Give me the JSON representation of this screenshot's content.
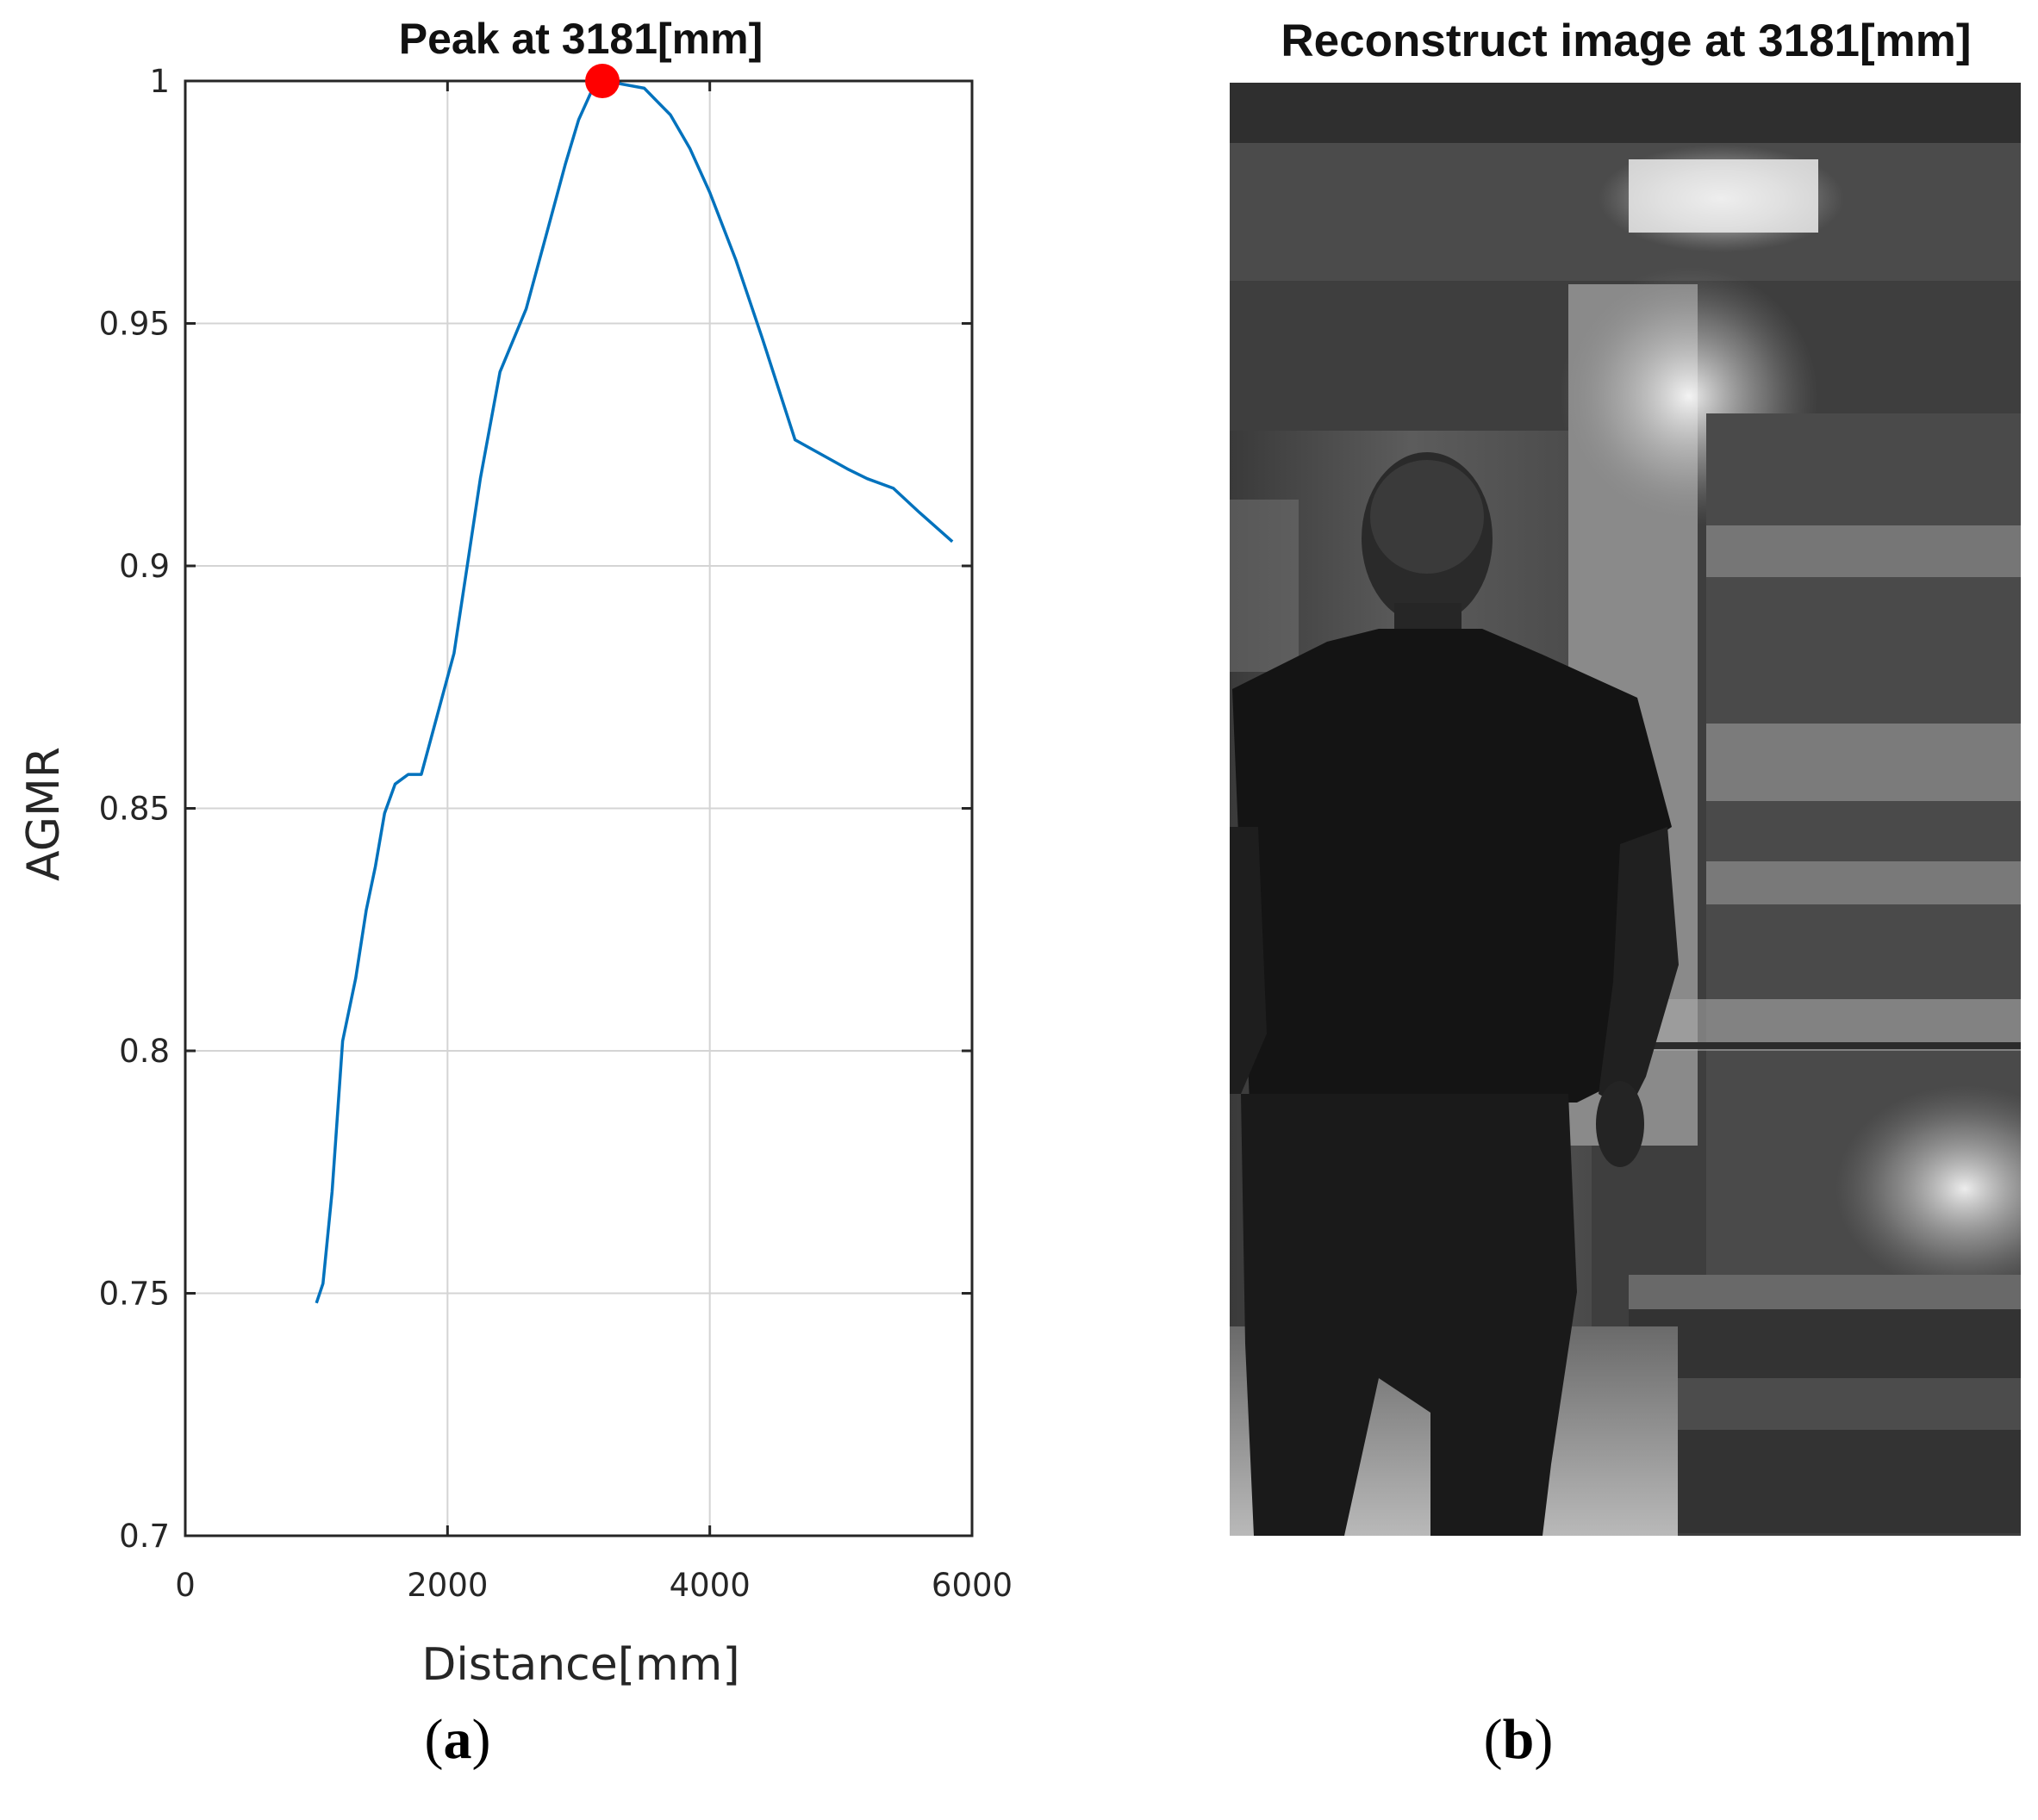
{
  "figure": {
    "panel_a": "a",
    "panel_b": "b",
    "image_title": "Reconstruct image at 3181[mm]"
  },
  "chart_data": {
    "type": "line",
    "title": "Peak at 3181[mm]",
    "xlabel": "Distance[mm]",
    "ylabel": "AGMR",
    "xlim": [
      0,
      6000
    ],
    "ylim": [
      0.7,
      1
    ],
    "xticks": [
      0,
      2000,
      4000,
      6000
    ],
    "xtick_labels": [
      "0",
      "2000",
      "4000",
      "6000"
    ],
    "yticks": [
      0.7,
      0.75,
      0.8,
      0.85,
      0.9,
      0.95,
      1
    ],
    "ytick_labels": [
      "0.7",
      "0.75",
      "0.8",
      "0.85",
      "0.9",
      "0.95",
      "1"
    ],
    "grid": true,
    "series": [
      {
        "color": "#0072BD",
        "x": [
          1000,
          1050,
          1120,
          1200,
          1300,
          1380,
          1450,
          1520,
          1600,
          1650,
          1700,
          1800,
          1850,
          1950,
          2050,
          2150,
          2250,
          2400,
          2600,
          2750,
          2900,
          3000,
          3100,
          3181,
          3300,
          3500,
          3700,
          3850,
          4000,
          4200,
          4400,
          4650,
          4850,
          5050,
          5200,
          5400,
          5600,
          5850
        ],
        "y": [
          0.748,
          0.752,
          0.771,
          0.802,
          0.815,
          0.829,
          0.838,
          0.849,
          0.855,
          0.856,
          0.857,
          0.857,
          0.862,
          0.872,
          0.882,
          0.9,
          0.918,
          0.94,
          0.953,
          0.968,
          0.983,
          0.992,
          0.998,
          1.0,
          0.9995,
          0.9985,
          0.993,
          0.986,
          0.977,
          0.963,
          0.947,
          0.926,
          0.923,
          0.92,
          0.918,
          0.916,
          0.911,
          0.905
        ]
      }
    ],
    "peak": {
      "x": 3181,
      "y": 1.0,
      "color": "#ff0000"
    }
  }
}
